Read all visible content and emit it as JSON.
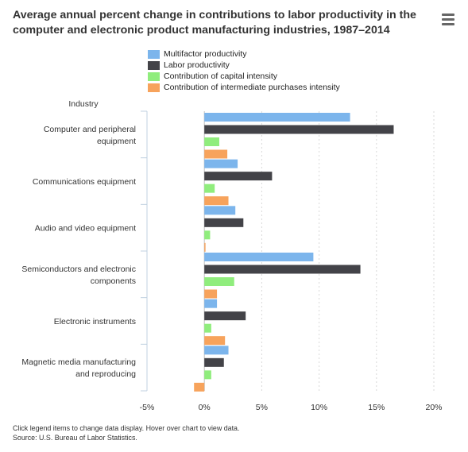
{
  "title": "Average annual percent change in contributions to labor productivity in the computer and electronic product manufacturing industries, 1987–2014",
  "menu_icon": "hamburger-menu-icon",
  "footer": {
    "note": "Click legend items to change data display. Hover over chart to view data.",
    "source": "Source: U.S. Bureau of Labor Statistics."
  },
  "chart_data": {
    "type": "bar",
    "orientation": "horizontal",
    "ylabel": "Industry",
    "categories": [
      [
        "Computer and peripheral",
        "equipment"
      ],
      [
        "Communications equipment"
      ],
      [
        "Audio and video equipment"
      ],
      [
        "Semiconductors and electronic",
        "components"
      ],
      [
        "Electronic instruments"
      ],
      [
        "Magnetic media manufacturing",
        "and reproducing"
      ]
    ],
    "xlim": [
      -5,
      20
    ],
    "xticks": [
      -5,
      0,
      5,
      10,
      15,
      20
    ],
    "xtick_labels": [
      "-5%",
      "0%",
      "5%",
      "10%",
      "15%",
      "20%"
    ],
    "grid": "vertical dashed",
    "legend_position": "top",
    "series": [
      {
        "name": "Multifactor productivity",
        "color": "#7cb5ec",
        "values": [
          12.7,
          2.9,
          2.7,
          9.5,
          1.1,
          2.1
        ]
      },
      {
        "name": "Labor productivity",
        "color": "#434348",
        "values": [
          16.5,
          5.9,
          3.4,
          13.6,
          3.6,
          1.7
        ]
      },
      {
        "name": "Contribution of capital intensity",
        "color": "#90ed7d",
        "values": [
          1.3,
          0.9,
          0.5,
          2.6,
          0.6,
          0.6
        ]
      },
      {
        "name": "Contribution of intermediate purchases intensity",
        "color": "#f7a35c",
        "values": [
          2.0,
          2.1,
          0.1,
          1.1,
          1.8,
          -0.9
        ]
      }
    ]
  }
}
